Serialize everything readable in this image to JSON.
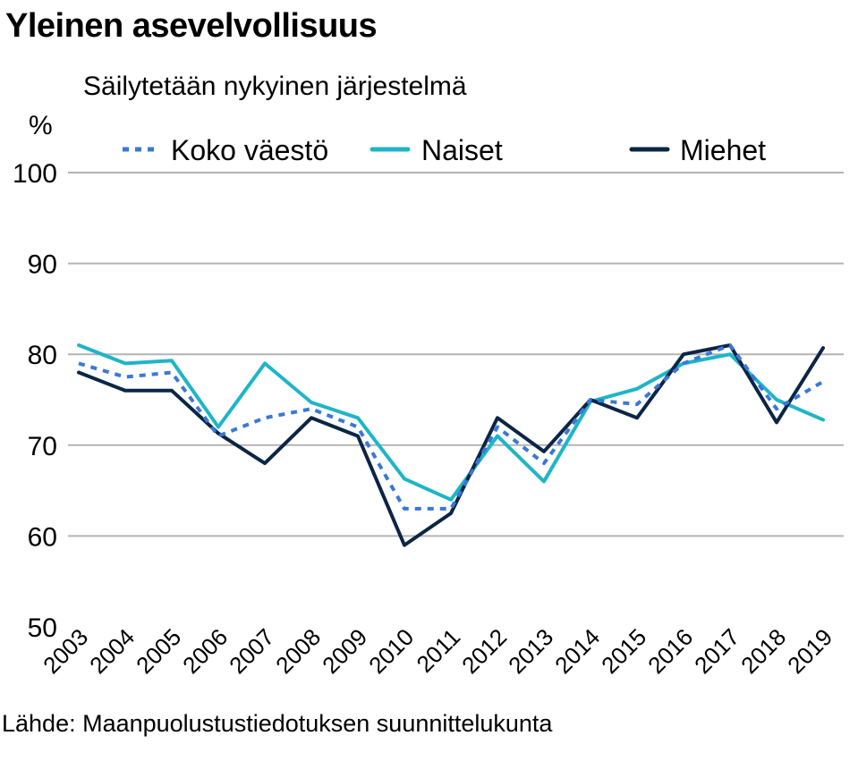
{
  "title": "Yleinen asevelvollisuus",
  "subtitle": "Säilytetään nykyinen järjestelmä",
  "source": "Lähde: Maanpuolustustiedotuksen suunnittelukunta",
  "colors": {
    "koko": "#3a78d6",
    "naiset": "#1eb5c7",
    "miehet": "#0b2545",
    "grid": "#b4b4b4"
  },
  "chart_data": {
    "type": "line",
    "ylabel": "%",
    "ylim": [
      50,
      100
    ],
    "yticks": [
      "50",
      "60",
      "70",
      "80",
      "90",
      "100"
    ],
    "grid": "horizontal",
    "legend_position": "top",
    "x": [
      "2003",
      "2004",
      "2005",
      "2006",
      "2007",
      "2008",
      "2009",
      "2010",
      "2011",
      "2012",
      "2013",
      "2014",
      "2015",
      "2016",
      "2017",
      "2018",
      "2019"
    ],
    "series": [
      {
        "name": "Koko väestö",
        "style": "dotted",
        "color": "#3a78d6",
        "values": [
          79,
          77.5,
          78,
          71,
          73,
          74,
          72,
          63,
          63,
          72,
          68,
          75,
          74.5,
          79,
          81,
          74,
          77
        ]
      },
      {
        "name": "Naiset",
        "style": "solid",
        "color": "#1eb5c7",
        "values": [
          81,
          79,
          79.3,
          72,
          79,
          74.7,
          73,
          66.3,
          64,
          71,
          66,
          74.8,
          76.2,
          79,
          80,
          75,
          72.8
        ]
      },
      {
        "name": "Miehet",
        "style": "solid",
        "color": "#0b2545",
        "values": [
          78,
          76,
          76,
          71.3,
          68,
          73,
          71,
          59,
          62.5,
          73,
          69.3,
          75,
          73,
          80,
          81,
          72.5,
          80.7
        ]
      }
    ]
  }
}
